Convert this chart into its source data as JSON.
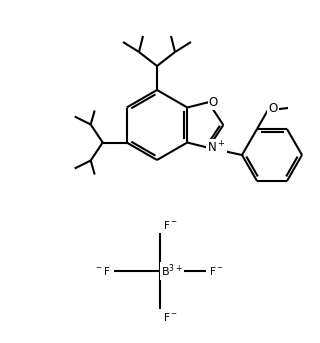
{
  "background": "#ffffff",
  "line_color": "#000000",
  "line_width": 1.5,
  "font_size": 7.5,
  "fig_width": 3.2,
  "fig_height": 3.43,
  "dpi": 100
}
